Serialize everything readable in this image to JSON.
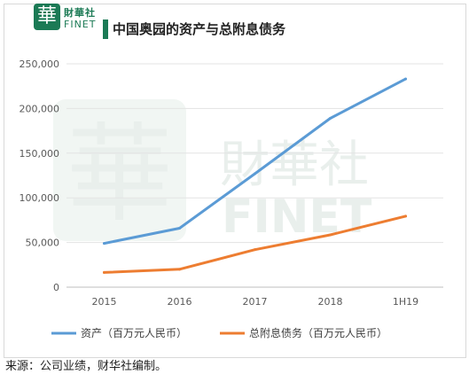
{
  "brand": {
    "logo_glyph": "華",
    "name_cn": "財華社",
    "name_en": "FINET",
    "brand_color": "#1b7a55"
  },
  "title": "中国奥园的资产与总附息债务",
  "source_note": "来源：公司业绩，财华社编制。",
  "watermark": {
    "text_cn": "財華社",
    "text_en": "FINET",
    "glyph": "華"
  },
  "chart_data": {
    "type": "line",
    "categories": [
      "2015",
      "2016",
      "2017",
      "2018",
      "1H19"
    ],
    "y_ticks": [
      "0",
      "50,000",
      "100,000",
      "150,000",
      "200,000",
      "250,000"
    ],
    "ylim": [
      0,
      250000
    ],
    "grid": "horizontal",
    "legend_position": "bottom",
    "series": [
      {
        "name": "资产（百万元人民币）",
        "color": "#5b9bd5",
        "values": [
          49000,
          66000,
          127000,
          189000,
          233000
        ]
      },
      {
        "name": "总附息债务（百万元人民币）",
        "color": "#ed7d31",
        "values": [
          16500,
          20000,
          42000,
          58500,
          79500
        ]
      }
    ]
  }
}
